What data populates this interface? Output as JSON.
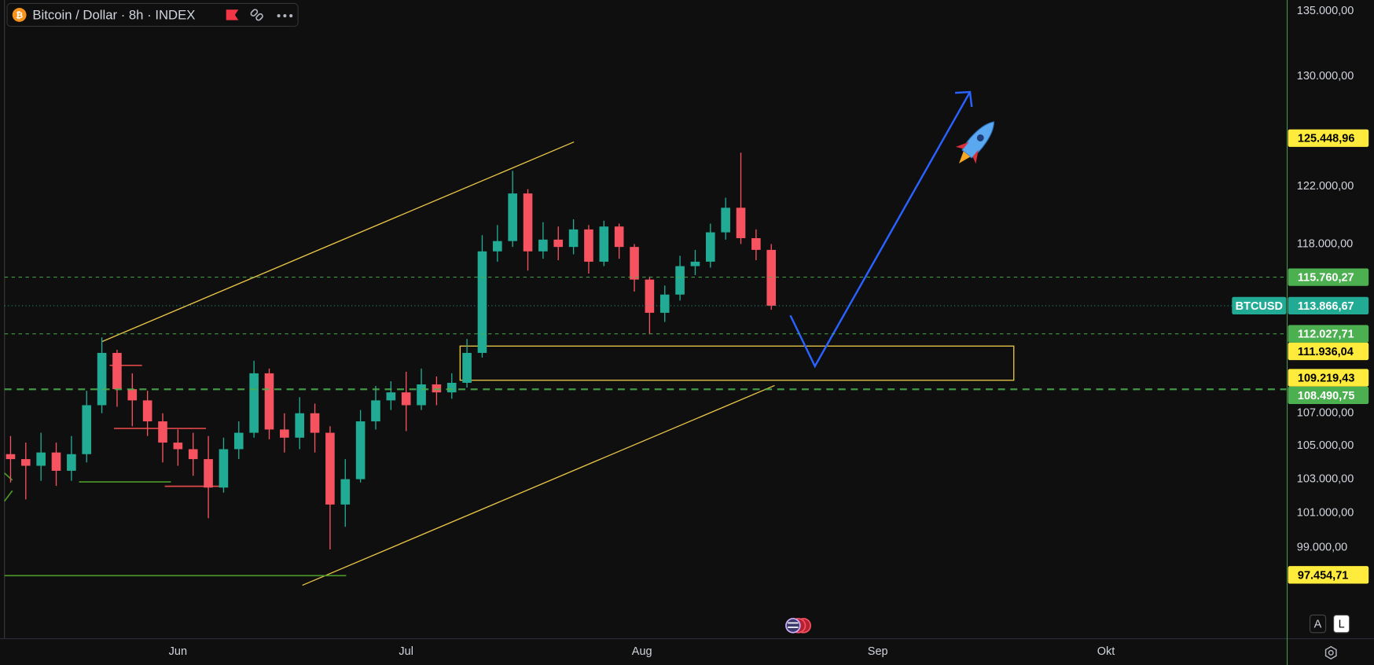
{
  "chart_data": {
    "type": "candlestick",
    "title": "Bitcoin / Dollar · 8h · INDEX",
    "log_scale": true,
    "up_color": "#22ab94",
    "down_color": "#f7525f",
    "x": [
      -22,
      -20,
      -18,
      -16,
      -14,
      -12,
      -10,
      -8,
      -6,
      -4,
      -2,
      0,
      2,
      4,
      6,
      8,
      10,
      12,
      14,
      16,
      18,
      20,
      22,
      24,
      26,
      28,
      30,
      32,
      34,
      36,
      38,
      40,
      42,
      44,
      46,
      48,
      50,
      52,
      54,
      56,
      58,
      60,
      62,
      64,
      66,
      68,
      70,
      72,
      74,
      76,
      78
    ],
    "open": [
      104500,
      104200,
      103800,
      104600,
      103500,
      104500,
      107500,
      110800,
      108500,
      107800,
      106500,
      105200,
      104800,
      104200,
      102500,
      104800,
      105800,
      109500,
      106000,
      105500,
      107000,
      105800,
      101500,
      103000,
      106500,
      107800,
      108300,
      107500,
      108800,
      108300,
      108900,
      110800,
      117500,
      118200,
      121500,
      117500,
      118300,
      117800,
      119000,
      116800,
      119200,
      117800,
      115600,
      113400,
      114600,
      116500,
      116800,
      118800,
      120500,
      118400,
      117600
    ],
    "high": [
      105600,
      105200,
      105800,
      105200,
      105600,
      108400,
      111800,
      111000,
      109500,
      108400,
      107000,
      106000,
      105800,
      105600,
      105500,
      106500,
      110300,
      109800,
      107000,
      108000,
      107600,
      106200,
      104200,
      107200,
      108700,
      109000,
      109600,
      109800,
      109300,
      109500,
      111700,
      118600,
      119300,
      123100,
      121800,
      119500,
      119200,
      119700,
      119300,
      119600,
      119400,
      118000,
      115800,
      115200,
      117200,
      117600,
      119400,
      121200,
      124400,
      119000,
      118000
    ],
    "low": [
      102800,
      101800,
      102900,
      102600,
      102900,
      104000,
      107000,
      107400,
      106200,
      105600,
      104000,
      103800,
      103200,
      100700,
      102200,
      104200,
      105500,
      105400,
      104600,
      104800,
      104600,
      98900,
      100200,
      102800,
      106000,
      107200,
      105900,
      107200,
      107500,
      107900,
      108600,
      110500,
      116800,
      117800,
      116200,
      117000,
      116900,
      117300,
      116000,
      116500,
      117000,
      114800,
      112000,
      112800,
      114200,
      115900,
      116400,
      118300,
      118000,
      116900,
      113600
    ],
    "close": [
      104200,
      103800,
      104600,
      103500,
      104500,
      107500,
      110800,
      108500,
      107800,
      106500,
      105200,
      104800,
      104200,
      102500,
      104800,
      105800,
      109500,
      106000,
      105500,
      107000,
      105800,
      101500,
      103000,
      106500,
      107800,
      108300,
      107500,
      108800,
      108300,
      108900,
      110800,
      117500,
      118200,
      121500,
      117500,
      118300,
      117800,
      119000,
      116800,
      119200,
      117800,
      115600,
      113400,
      114600,
      116500,
      116800,
      118800,
      120500,
      118400,
      117600,
      113866.67
    ],
    "xlim": [
      -22.8,
      145.7
    ],
    "xticks": [
      {
        "value": 0,
        "label": "Jun"
      },
      {
        "value": 30,
        "label": "Jul"
      },
      {
        "value": 61,
        "label": "Aug"
      },
      {
        "value": 92,
        "label": "Sep"
      },
      {
        "value": 122,
        "label": "Okt"
      }
    ],
    "ylim": [
      93970,
      135880
    ],
    "yticks": [
      {
        "value": 135000,
        "label": "135.000,00"
      },
      {
        "value": 130000,
        "label": "130.000,00"
      },
      {
        "value": 122000,
        "label": "122.000,00"
      },
      {
        "value": 118000,
        "label": "118.000,00"
      },
      {
        "value": 107000,
        "label": "107.000,00"
      },
      {
        "value": 105000,
        "label": "105.000,00"
      },
      {
        "value": 103000,
        "label": "103.000,00"
      },
      {
        "value": 101000,
        "label": "101.000,00"
      },
      {
        "value": 99000,
        "label": "99.000,00"
      }
    ],
    "price_labels": [
      {
        "value": 125448.96,
        "label": "125.448,96",
        "color": "#ffeb3b"
      },
      {
        "value": 115760.27,
        "label": "115.760,27",
        "color": "#4caf50",
        "line_style": "dashed"
      },
      {
        "value": 113866.67,
        "label": "113.866,67",
        "color": "#22ab94",
        "name": "BTCUSD",
        "line_style": "dotted"
      },
      {
        "value": 112027.71,
        "label": "112.027,71",
        "color": "#4caf50",
        "line_style": "dashed"
      },
      {
        "value": 111936.04,
        "label": "111.936,04",
        "color": "#ffeb3b"
      },
      {
        "value": 109219.43,
        "label": "109.219,43",
        "color": "#ffeb3b"
      },
      {
        "value": 108490.75,
        "label": "108.490,75",
        "color": "#4caf50",
        "line_style": "thick-dashed"
      },
      {
        "value": 97454.71,
        "label": "97.454,71",
        "color": "#ffeb3b"
      }
    ],
    "scale_buttons": [
      "A",
      "L"
    ]
  }
}
